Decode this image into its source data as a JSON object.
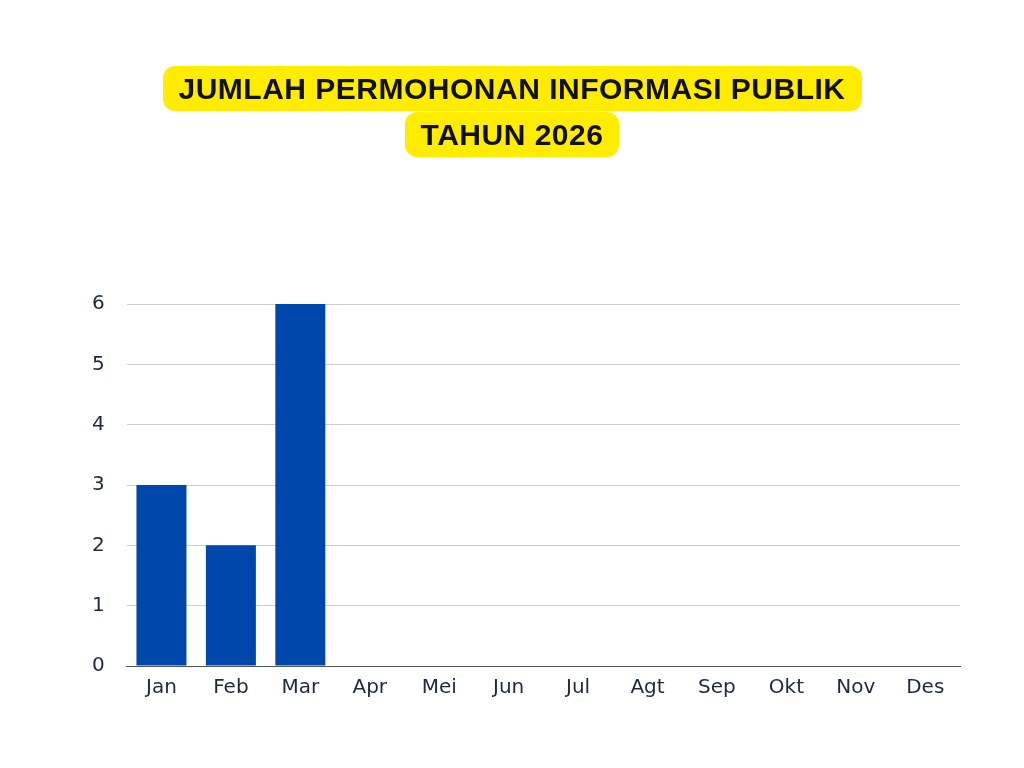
{
  "chart_data": {
    "type": "bar",
    "title": "JUMLAH PERMOHONAN INFORMASI PUBLIK\nTAHUN 2026",
    "categories": [
      "Jan",
      "Feb",
      "Mar",
      "Apr",
      "Mei",
      "Jun",
      "Jul",
      "Agt",
      "Sep",
      "Okt",
      "Nov",
      "Des"
    ],
    "values": [
      3,
      2,
      6,
      0,
      0,
      0,
      0,
      0,
      0,
      0,
      0,
      0
    ],
    "color": "#0047ab",
    "ylim": [
      0,
      6
    ],
    "yticks": [
      0,
      1,
      2,
      3,
      4,
      5,
      6
    ],
    "grid": "y",
    "legend": false
  }
}
